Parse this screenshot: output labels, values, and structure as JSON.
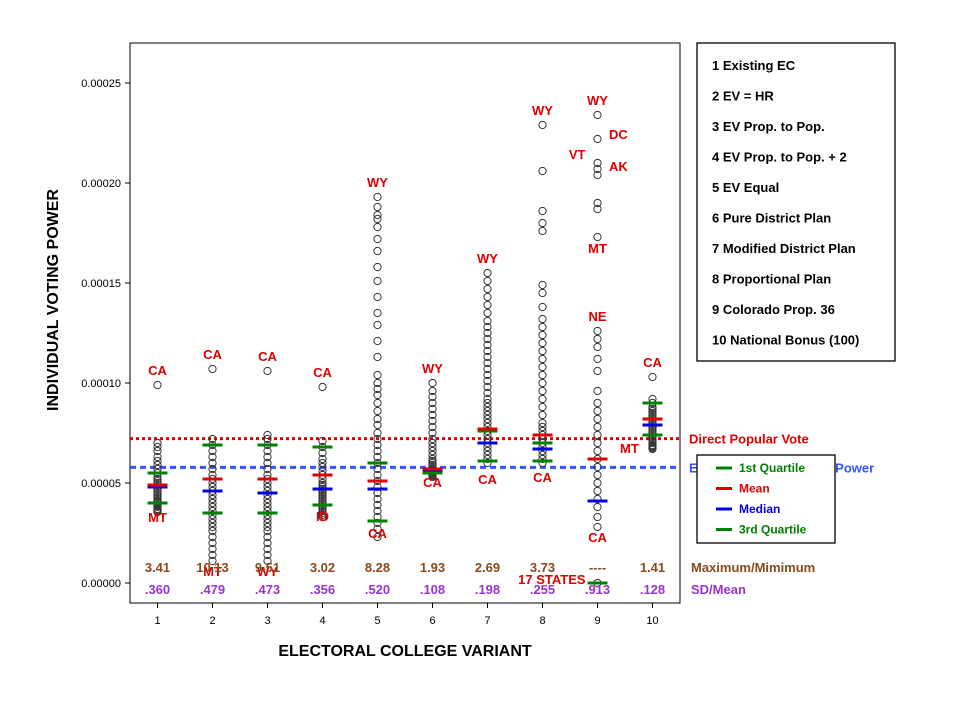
{
  "chart_data": {
    "type": "scatter",
    "ylabel": "INDIVIDUAL VOTING POWER",
    "xlabel": "ELECTORAL COLLEGE VARIANT",
    "ylim": [
      -1e-05,
      0.00027
    ],
    "xlim": [
      0.5,
      10.5
    ],
    "y_ticks": [
      "0.00000",
      "0.00005",
      "0.00010",
      "0.00015",
      "0.00020",
      "0.00025"
    ],
    "y_tick_values": [
      0,
      5e-05,
      0.0001,
      0.00015,
      0.0002,
      0.00025
    ],
    "x_ticks": [
      "1",
      "2",
      "3",
      "4",
      "5",
      "6",
      "7",
      "8",
      "9",
      "10"
    ],
    "variants": [
      {
        "x": 1,
        "points": [
          3.55e-05,
          3.6e-05,
          3.65e-05,
          3.7e-05,
          3.8e-05,
          3.85e-05,
          3.9e-05,
          4e-05,
          4.05e-05,
          4.1e-05,
          4.2e-05,
          4.3e-05,
          4.4e-05,
          4.5e-05,
          4.6e-05,
          4.7e-05,
          4.8e-05,
          4.9e-05,
          5e-05,
          5.1e-05,
          5.2e-05,
          5.3e-05,
          5.5e-05,
          5.7e-05,
          5.9e-05,
          6.1e-05,
          6.3e-05,
          6.6e-05,
          6.8e-05,
          7e-05,
          9.9e-05
        ],
        "q1": 4e-05,
        "mean": 4.9e-05,
        "median": 4.8e-05,
        "q3": 5.5e-05
      },
      {
        "x": 2,
        "points": [
          1.1e-05,
          1.4e-05,
          1.7e-05,
          2e-05,
          2.3e-05,
          2.6e-05,
          2.8e-05,
          3e-05,
          3.2e-05,
          3.4e-05,
          3.6e-05,
          3.8e-05,
          4e-05,
          4.2e-05,
          4.4e-05,
          4.6e-05,
          4.8e-05,
          5e-05,
          5.2e-05,
          5.4e-05,
          5.7e-05,
          6e-05,
          6.3e-05,
          6.6e-05,
          6.9e-05,
          7.2e-05,
          0.000107
        ],
        "q1": 3.5e-05,
        "mean": 5.2e-05,
        "median": 4.6e-05,
        "q3": 6.9e-05
      },
      {
        "x": 3,
        "points": [
          1.1e-05,
          1.4e-05,
          1.7e-05,
          2e-05,
          2.3e-05,
          2.6e-05,
          2.8e-05,
          3e-05,
          3.2e-05,
          3.4e-05,
          3.6e-05,
          3.8e-05,
          4e-05,
          4.2e-05,
          4.4e-05,
          4.6e-05,
          4.8e-05,
          5e-05,
          5.2e-05,
          5.4e-05,
          5.7e-05,
          6e-05,
          6.3e-05,
          6.6e-05,
          6.9e-05,
          7.2e-05,
          7.4e-05,
          0.000106
        ],
        "q1": 3.5e-05,
        "mean": 5.2e-05,
        "median": 4.5e-05,
        "q3": 6.9e-05
      },
      {
        "x": 4,
        "points": [
          3.3e-05,
          3.4e-05,
          3.5e-05,
          3.6e-05,
          3.7e-05,
          3.8e-05,
          3.9e-05,
          4e-05,
          4.1e-05,
          4.2e-05,
          4.3e-05,
          4.4e-05,
          4.5e-05,
          4.6e-05,
          4.7e-05,
          4.8e-05,
          4.9e-05,
          5e-05,
          5.2e-05,
          5.4e-05,
          5.6e-05,
          5.8e-05,
          6e-05,
          6.2e-05,
          6.5e-05,
          6.8e-05,
          7.1e-05,
          9.8e-05
        ],
        "q1": 3.9e-05,
        "mean": 5.4e-05,
        "median": 4.7e-05,
        "q3": 6.8e-05
      },
      {
        "x": 5,
        "points": [
          2.3e-05,
          2.7e-05,
          3e-05,
          3.3e-05,
          3.6e-05,
          3.9e-05,
          4.2e-05,
          4.5e-05,
          4.8e-05,
          5.1e-05,
          5.4e-05,
          5.7e-05,
          6e-05,
          6.3e-05,
          6.6e-05,
          6.9e-05,
          7.2e-05,
          7.5e-05,
          7.9e-05,
          8.2e-05,
          8.6e-05,
          9e-05,
          9.4e-05,
          9.7e-05,
          0.0001,
          0.000104,
          0.000113,
          0.000121,
          0.000129,
          0.000135,
          0.000143,
          0.000151,
          0.000158,
          0.000166,
          0.000172,
          0.000178,
          0.000182,
          0.000184,
          0.000188,
          0.000193
        ],
        "q1": 3.1e-05,
        "mean": 5.1e-05,
        "median": 4.7e-05,
        "q3": 6e-05
      },
      {
        "x": 6,
        "points": [
          5.3e-05,
          5.35e-05,
          5.4e-05,
          5.45e-05,
          5.5e-05,
          5.55e-05,
          5.6e-05,
          5.7e-05,
          5.8e-05,
          5.9e-05,
          6e-05,
          6.1e-05,
          6.2e-05,
          6.4e-05,
          6.6e-05,
          6.8e-05,
          7e-05,
          7.2e-05,
          7.5e-05,
          7.8e-05,
          8.1e-05,
          8.4e-05,
          8.7e-05,
          9e-05,
          9.3e-05,
          9.6e-05,
          0.0001
        ],
        "q1": 5.5e-05,
        "mean": 5.7e-05,
        "median": 5.65e-05,
        "q3": 5.7e-05
      },
      {
        "x": 7,
        "points": [
          6e-05,
          6.2e-05,
          6.4e-05,
          6.6e-05,
          6.8e-05,
          7e-05,
          7.2e-05,
          7.4e-05,
          7.6e-05,
          7.8e-05,
          8e-05,
          8.2e-05,
          8.4e-05,
          8.6e-05,
          8.8e-05,
          9e-05,
          9.2e-05,
          9.5e-05,
          9.8e-05,
          0.000101,
          0.000104,
          0.000107,
          0.00011,
          0.000113,
          0.000116,
          0.000119,
          0.000122,
          0.000125,
          0.000128,
          0.000131,
          0.000135,
          0.000139,
          0.000143,
          0.000147,
          0.000151,
          0.000155
        ],
        "q1": 6.1e-05,
        "mean": 7.7e-05,
        "median": 7e-05,
        "q3": 7.6e-05
      },
      {
        "x": 8,
        "points": [
          6e-05,
          6.2e-05,
          6.4e-05,
          6.6e-05,
          6.8e-05,
          7e-05,
          7.2e-05,
          7.4e-05,
          7.6e-05,
          7.8e-05,
          8e-05,
          8.4e-05,
          8.8e-05,
          9.2e-05,
          9.6e-05,
          0.0001,
          0.000104,
          0.000108,
          0.000112,
          0.000116,
          0.00012,
          0.000124,
          0.000128,
          0.000132,
          0.000138,
          0.000145,
          0.000149,
          0.000176,
          0.00018,
          0.000186,
          0.000206,
          0.000229
        ],
        "q1": 6.1e-05,
        "mean": 7.4e-05,
        "median": 6.7e-05,
        "q3": 7e-05
      },
      {
        "x": 9,
        "points": [
          0,
          2.8e-05,
          3.3e-05,
          3.8e-05,
          4.2e-05,
          4.6e-05,
          5e-05,
          5.4e-05,
          5.8e-05,
          6.2e-05,
          6.6e-05,
          7e-05,
          7.4e-05,
          7.8e-05,
          8.2e-05,
          8.6e-05,
          9e-05,
          9.6e-05,
          0.000106,
          0.000112,
          0.000118,
          0.000122,
          0.000126,
          0.000173,
          0.000187,
          0.00019,
          0.000204,
          0.000207,
          0.00021,
          0.000222,
          0.000234
        ],
        "q1": 0.0,
        "mean": 6.2e-05,
        "median": 4.1e-05,
        "q3": 6.2e-05
      },
      {
        "x": 10,
        "points": [
          6.7e-05,
          6.75e-05,
          6.8e-05,
          6.85e-05,
          6.9e-05,
          7e-05,
          7.1e-05,
          7.2e-05,
          7.3e-05,
          7.4e-05,
          7.5e-05,
          7.6e-05,
          7.7e-05,
          7.8e-05,
          7.9e-05,
          8e-05,
          8.1e-05,
          8.2e-05,
          8.3e-05,
          8.4e-05,
          8.5e-05,
          8.6e-05,
          8.7e-05,
          8.8e-05,
          9e-05,
          9.2e-05,
          0.000103
        ],
        "q1": 7.4e-05,
        "mean": 8.2e-05,
        "median": 7.9e-05,
        "q3": 9e-05
      }
    ],
    "reference_lines": [
      {
        "name": "Direct Popular Vote",
        "y": 7.22e-05,
        "color": "#e00000"
      },
      {
        "name": "Equalized 2-Tier Voting Power",
        "y": 5.78e-05,
        "color": "#3355ff"
      }
    ],
    "point_labels": [
      {
        "text": "CA",
        "x": 1,
        "y": 0.000104
      },
      {
        "text": "MT",
        "x": 1,
        "y": 3.05e-05
      },
      {
        "text": "CA",
        "x": 2,
        "y": 0.000112
      },
      {
        "text": "MT",
        "x": 2,
        "y": 3.5e-06
      },
      {
        "text": "CA",
        "x": 3,
        "y": 0.000111
      },
      {
        "text": "WY",
        "x": 3,
        "y": 3.5e-06
      },
      {
        "text": "CA",
        "x": 4,
        "y": 0.000103
      },
      {
        "text": "ID",
        "x": 4,
        "y": 3.1e-05
      },
      {
        "text": "WY",
        "x": 5,
        "y": 0.000198
      },
      {
        "text": "CA",
        "x": 5,
        "y": 2.25e-05
      },
      {
        "text": "WY",
        "x": 6,
        "y": 0.000105
      },
      {
        "text": "CA",
        "x": 6,
        "y": 4.8e-05
      },
      {
        "text": "WY",
        "x": 7,
        "y": 0.00016
      },
      {
        "text": "CA",
        "x": 7,
        "y": 4.95e-05
      },
      {
        "text": "WY",
        "x": 8,
        "y": 0.000234
      },
      {
        "text": "CA",
        "x": 8,
        "y": 5.05e-05
      },
      {
        "text": "WY",
        "x": 9,
        "y": 0.000239
      },
      {
        "text": "DC",
        "x": 9.38,
        "y": 0.000222
      },
      {
        "text": "VT",
        "x": 8.63,
        "y": 0.000212
      },
      {
        "text": "AK",
        "x": 9.38,
        "y": 0.000206
      },
      {
        "text": "MT",
        "x": 9,
        "y": 0.000165
      },
      {
        "text": "NE",
        "x": 9,
        "y": 0.000131
      },
      {
        "text": "CA",
        "x": 9,
        "y": 2.05e-05
      },
      {
        "text": "17 STATES",
        "x": 8.17,
        "y": -4e-07
      },
      {
        "text": "CA",
        "x": 10,
        "y": 0.000108
      },
      {
        "text": "MT",
        "x": 9.58,
        "y": 6.5e-05
      }
    ],
    "max_min_ratio": [
      "3.41",
      "10.13",
      "9.51",
      "3.02",
      "8.28",
      "1.93",
      "2.69",
      "3.73",
      "----",
      "1.41"
    ],
    "sd_mean": [
      ".360",
      ".479",
      ".473",
      ".356",
      ".520",
      ".108",
      ".198",
      ".255",
      ".913",
      ".128"
    ],
    "row_labels": {
      "max_min": "Maximum/Mimimum",
      "sd_mean": "SD/Mean"
    },
    "legend_variants": [
      "1  Existing EC",
      "2  EV = HR",
      "3  EV Prop. to Pop.",
      "4  EV Prop. to Pop. + 2",
      "5  EV Equal",
      "6  Pure District Plan",
      "7  Modified District Plan",
      "8  Proportional Plan",
      "9  Colorado Prop. 36",
      "10  National Bonus (100)"
    ],
    "legend_stats": [
      {
        "label": "1st Quartile",
        "color": "#008000"
      },
      {
        "label": "Mean",
        "color": "#e00000"
      },
      {
        "label": "Median",
        "color": "#0000e0"
      },
      {
        "label": "3rd Quartile",
        "color": "#008000"
      }
    ]
  },
  "colors": {
    "quartile": "#008000",
    "mean": "#e00000",
    "median": "#0000e0",
    "state_label": "#e00000",
    "max_min": "#8a4a1c",
    "sd_mean": "#9933cc"
  }
}
